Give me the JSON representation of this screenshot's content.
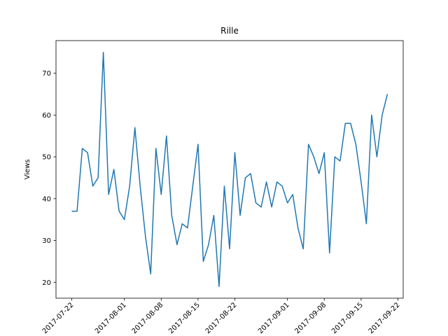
{
  "chart_data": {
    "type": "line",
    "title": "Rille",
    "xlabel": "",
    "ylabel": "Views",
    "x_type": "date",
    "x_start": "2017-07-22",
    "xlim": [
      "2017-07-19",
      "2017-09-23"
    ],
    "ylim": [
      16.2,
      77.8
    ],
    "x_ticks": [
      "2017-07-22",
      "2017-08-01",
      "2017-08-08",
      "2017-08-15",
      "2017-08-22",
      "2017-09-01",
      "2017-09-08",
      "2017-09-15",
      "2017-09-22"
    ],
    "x_tick_labels": [
      "2017-07-22",
      "2017-08-01",
      "2017-08-08",
      "2017-08-15",
      "2017-08-22",
      "2017-09-01",
      "2017-09-08",
      "2017-09-15",
      "2017-09-22"
    ],
    "y_ticks": [
      20,
      30,
      40,
      50,
      60,
      70
    ],
    "grid": false,
    "color": "#1f77b4",
    "series": [
      {
        "values": [
          37,
          37,
          52,
          51,
          43,
          45,
          75,
          41,
          47,
          37,
          35,
          43,
          57,
          43,
          31,
          22,
          52,
          41,
          55,
          36,
          29,
          34,
          33,
          43,
          53,
          25,
          29,
          36,
          19,
          43,
          28,
          51,
          36,
          45,
          46,
          39,
          38,
          44,
          38,
          44,
          43,
          39,
          41,
          33,
          28,
          53,
          50,
          46,
          51,
          27,
          50,
          49,
          58,
          58,
          53,
          44,
          34,
          60,
          50,
          60,
          65
        ]
      }
    ]
  }
}
